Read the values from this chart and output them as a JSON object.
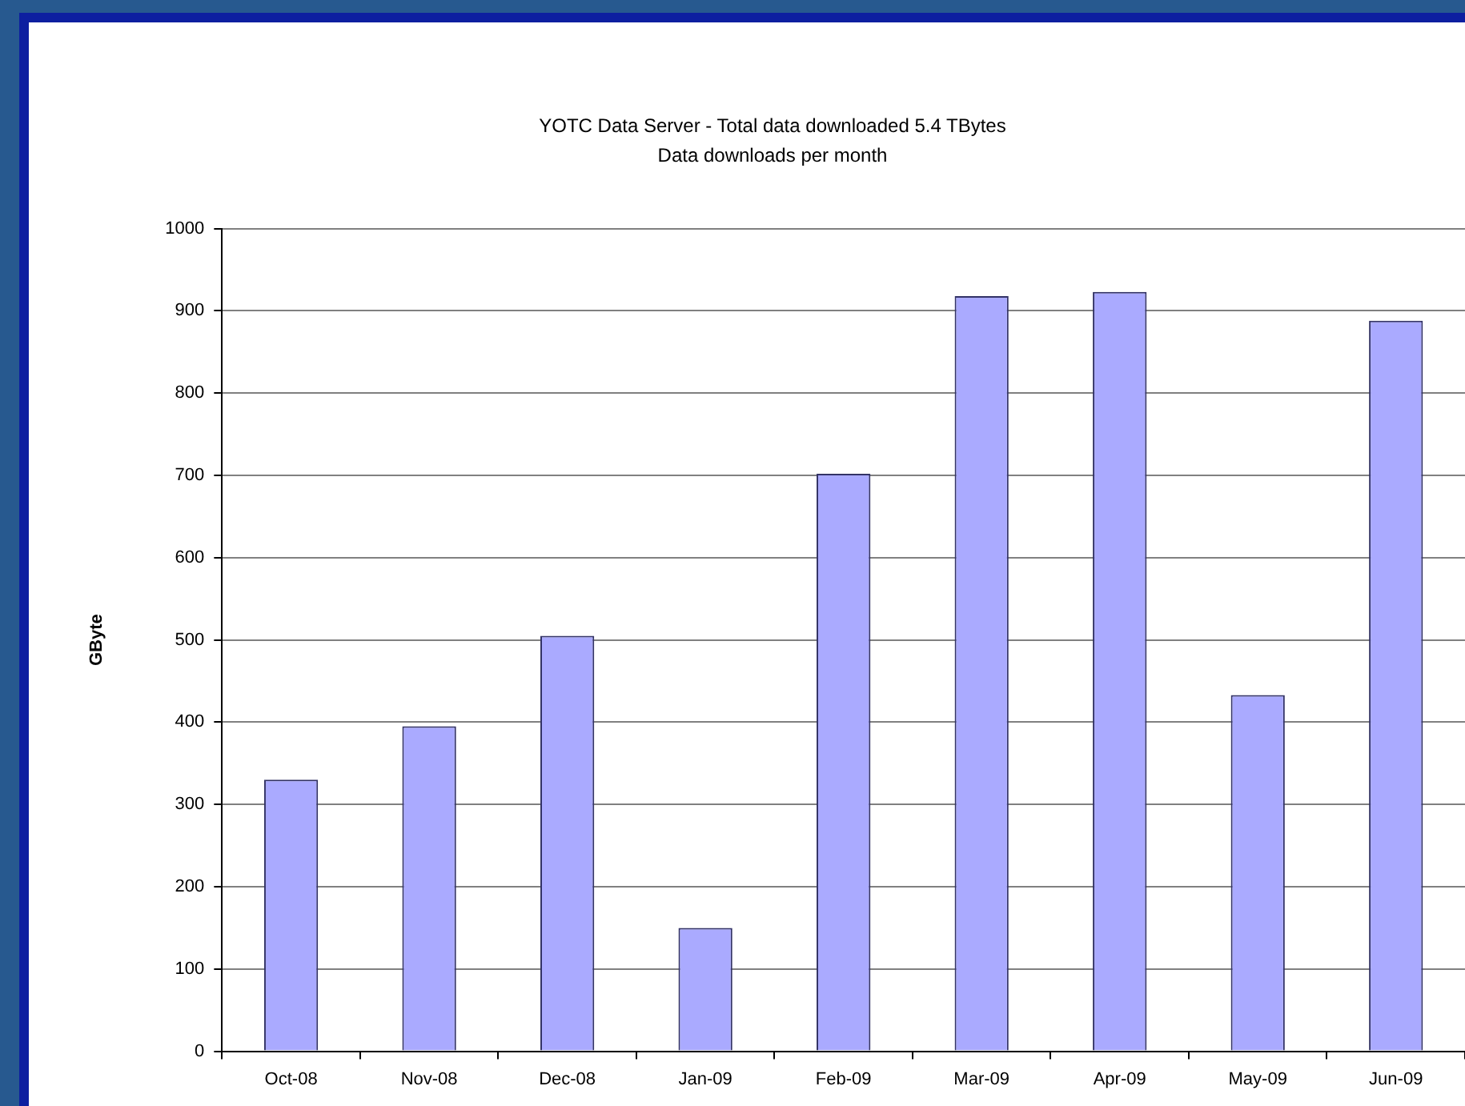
{
  "chart_data": {
    "type": "bar",
    "title": "YOTC Data Server - Total data downloaded 5.4 TBytes",
    "subtitle": "Data downloads per month",
    "ylabel": "GByte",
    "categories": [
      "Oct-08",
      "Nov-08",
      "Dec-08",
      "Jan-09",
      "Feb-09",
      "Mar-09",
      "Apr-09",
      "May-09",
      "Jun-09"
    ],
    "values": [
      330,
      395,
      505,
      150,
      702,
      918,
      923,
      433,
      888
    ],
    "color": "#aaaaff",
    "ylim": [
      0,
      1000
    ],
    "yticks": [
      0,
      100,
      200,
      300,
      400,
      500,
      600,
      700,
      800,
      900,
      1000
    ],
    "grid": "y"
  }
}
